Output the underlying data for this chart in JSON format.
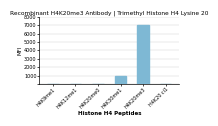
{
  "title": "Recombinant H4K20me3 Antibody | Trimethyl Histone H4 Lysine 20",
  "xlabel": "Histone H4 Peptides",
  "ylabel": "MFI",
  "categories": [
    "H4K9me1",
    "H4K12me1",
    "H4K20me0",
    "H4K30me1",
    "H4K20me3",
    "H4K20 ci1"
  ],
  "values": [
    0,
    0,
    0,
    1000,
    7000,
    0
  ],
  "bar_color": "#7eb8d4",
  "ylim": [
    0,
    8000
  ],
  "yticks": [
    0,
    1000,
    2000,
    3000,
    4000,
    5000,
    6000,
    7000,
    8000
  ],
  "title_fontsize": 4.2,
  "axis_label_fontsize": 4.0,
  "tick_fontsize": 3.5,
  "bar_width": 0.5
}
